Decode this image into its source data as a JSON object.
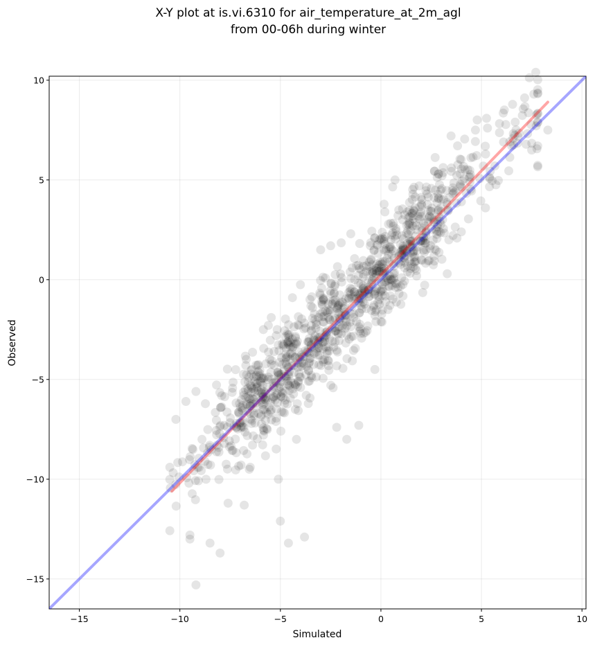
{
  "chart_data": {
    "type": "scatter",
    "title_line1": "X-Y plot at is.vi.6310 for air_temperature_at_2m_agl",
    "title_line2": "from 00-06h during winter",
    "xlabel": "Simulated",
    "ylabel": "Observed",
    "xlim": [
      -16.5,
      10.2
    ],
    "ylim": [
      -16.5,
      10.2
    ],
    "xticks": [
      -15,
      -10,
      -5,
      0,
      5,
      10
    ],
    "yticks": [
      -15,
      -10,
      -5,
      0,
      5,
      10
    ],
    "grid": true,
    "point_color": "#000000",
    "point_alpha": 0.1,
    "points_generated": {
      "count": 1100,
      "x_range": [
        -10.5,
        8.3
      ],
      "slope": 1.04,
      "intercept": 0.4,
      "noise_sd": 1.25
    },
    "points_sample": [
      [
        -9.2,
        -15.3
      ],
      [
        -8.0,
        -13.7
      ],
      [
        -8.5,
        -13.2
      ],
      [
        -4.6,
        -13.2
      ],
      [
        -3.8,
        -12.9
      ],
      [
        -9.5,
        -12.8
      ],
      [
        -9.5,
        -13.0
      ],
      [
        -5.0,
        -12.1
      ],
      [
        -10.5,
        -9.4
      ],
      [
        -10.2,
        -7.0
      ],
      [
        -9.7,
        -6.1
      ],
      [
        -9.2,
        -5.6
      ],
      [
        -4.4,
        -0.9
      ],
      [
        -3.4,
        -1.4
      ],
      [
        -3.0,
        1.5
      ],
      [
        -2.5,
        1.7
      ],
      [
        -1.5,
        2.3
      ],
      [
        0.2,
        3.4
      ],
      [
        0.7,
        5.0
      ],
      [
        1.9,
        4.7
      ],
      [
        4.7,
        7.5
      ],
      [
        5.3,
        7.6
      ],
      [
        8.3,
        7.5
      ],
      [
        7.5,
        6.5
      ],
      [
        6.5,
        6.7
      ],
      [
        5.2,
        3.6
      ],
      [
        4.0,
        2.4
      ],
      [
        3.3,
        0.3
      ],
      [
        2.0,
        1.0
      ],
      [
        0.9,
        -0.7
      ],
      [
        -0.3,
        -4.5
      ],
      [
        -1.1,
        -7.3
      ],
      [
        -1.7,
        -8.0
      ],
      [
        -2.2,
        -7.4
      ],
      [
        -2.8,
        -4.0
      ],
      [
        -4.2,
        -8.0
      ],
      [
        -5.1,
        -10.0
      ],
      [
        -6.5,
        -9.4
      ],
      [
        -7.6,
        -11.2
      ],
      [
        -6.8,
        -11.3
      ]
    ],
    "series": [
      {
        "kind": "regression-line",
        "color": "#ff0000",
        "alpha": 0.35,
        "x": [
          -10.4,
          8.3
        ],
        "y": [
          -10.6,
          8.9
        ]
      },
      {
        "kind": "one-to-one-line",
        "color": "#0000ff",
        "alpha": 0.35,
        "x": [
          -16.5,
          10.2
        ],
        "y": [
          -16.5,
          10.2
        ]
      }
    ]
  }
}
